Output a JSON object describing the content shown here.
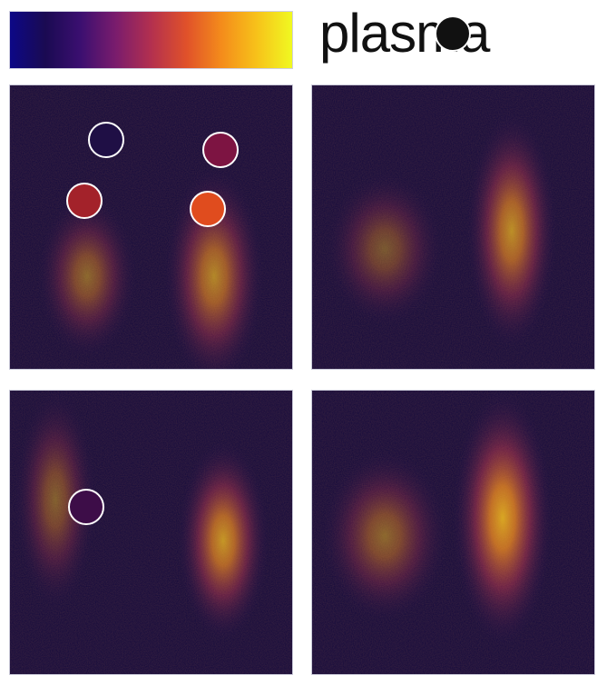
{
  "title": "plasma",
  "colormap": {
    "name": "plasma",
    "stops": [
      "#0d0887",
      "#1a0a52",
      "#3b0f70",
      "#7a1c6d",
      "#b3304f",
      "#e0512a",
      "#f48c1b",
      "#f7c21a",
      "#f0f921"
    ]
  },
  "panels": [
    {
      "id": "top-left",
      "markers": [
        {
          "color": "#1f0f45"
        },
        {
          "color": "#7d1442"
        },
        {
          "color": "#a3222a"
        },
        {
          "color": "#e04c1e"
        }
      ]
    },
    {
      "id": "top-right",
      "markers": []
    },
    {
      "id": "bottom-left",
      "markers": [
        {
          "color": "#3d0d48"
        }
      ]
    },
    {
      "id": "bottom-right",
      "markers": []
    }
  ]
}
